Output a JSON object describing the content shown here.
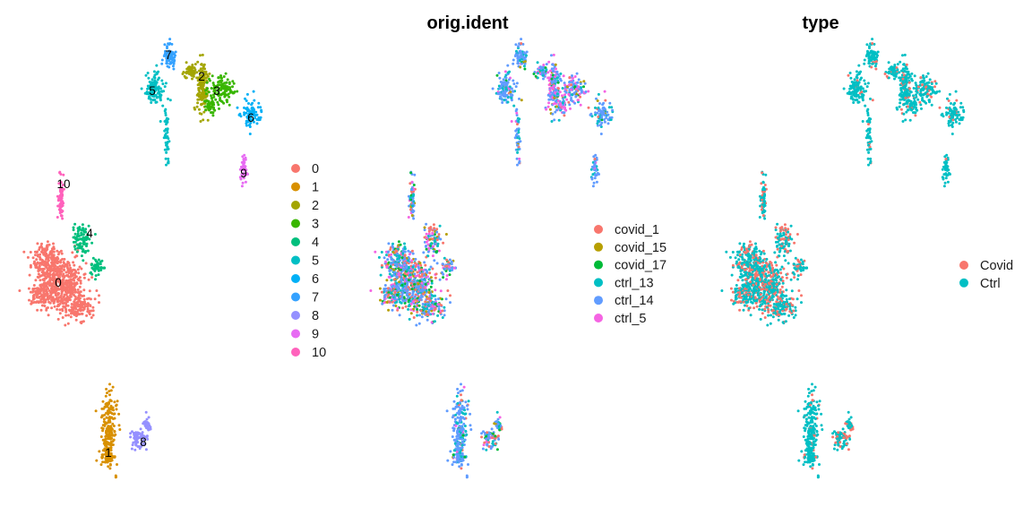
{
  "chart_data": [
    {
      "type": "scatter",
      "title": "",
      "group_by": "seurat_clusters",
      "legend": [
        {
          "label": "0",
          "color": "#F8766D"
        },
        {
          "label": "1",
          "color": "#D89000"
        },
        {
          "label": "2",
          "color": "#A3A500"
        },
        {
          "label": "3",
          "color": "#39B600"
        },
        {
          "label": "4",
          "color": "#00BF7D"
        },
        {
          "label": "5",
          "color": "#00BFC4"
        },
        {
          "label": "6",
          "color": "#00B0F6"
        },
        {
          "label": "7",
          "color": "#35A2FF"
        },
        {
          "label": "8",
          "color": "#9590FF"
        },
        {
          "label": "9",
          "color": "#E76BF3"
        },
        {
          "label": "10",
          "color": "#FF62BC"
        }
      ],
      "cluster_labels": [
        "0",
        "1",
        "2",
        "3",
        "4",
        "5",
        "6",
        "7",
        "8",
        "9",
        "10"
      ],
      "legend_position": "right",
      "grid": false,
      "axes": false
    },
    {
      "type": "scatter",
      "title": "orig.ident",
      "group_by": "orig.ident",
      "legend": [
        {
          "label": "covid_1",
          "color": "#F8766D"
        },
        {
          "label": "covid_15",
          "color": "#B79F00"
        },
        {
          "label": "covid_17",
          "color": "#00BA38"
        },
        {
          "label": "ctrl_13",
          "color": "#00BFC4"
        },
        {
          "label": "ctrl_14",
          "color": "#619CFF"
        },
        {
          "label": "ctrl_5",
          "color": "#F564E3"
        }
      ],
      "legend_position": "right",
      "grid": false,
      "axes": false
    },
    {
      "type": "scatter",
      "title": "type",
      "group_by": "type",
      "legend": [
        {
          "label": "Covid",
          "color": "#F8766D"
        },
        {
          "label": "Ctrl",
          "color": "#00BFC4"
        }
      ],
      "legend_position": "right",
      "grid": false,
      "axes": false
    }
  ]
}
